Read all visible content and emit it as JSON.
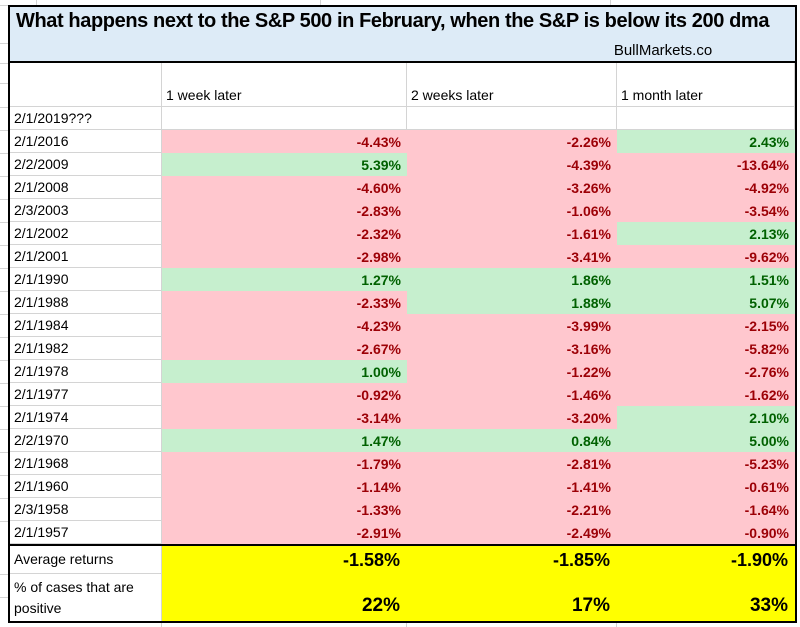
{
  "header": {
    "title": "What happens next to the S&P 500 in February, when the S&P is below its 200 dma",
    "brand": "BullMarkets.co"
  },
  "table": {
    "columns": [
      "1 week later",
      "2 weeks later",
      "1 month later"
    ],
    "pending_row": {
      "date": "2/1/2019???",
      "values": [
        "",
        "",
        ""
      ]
    },
    "rows": [
      {
        "date": "2/1/2016",
        "values": [
          "-4.43%",
          "-2.26%",
          "2.43%"
        ]
      },
      {
        "date": "2/2/2009",
        "values": [
          "5.39%",
          "-4.39%",
          "-13.64%"
        ]
      },
      {
        "date": "2/1/2008",
        "values": [
          "-4.60%",
          "-3.26%",
          "-4.92%"
        ]
      },
      {
        "date": "2/3/2003",
        "values": [
          "-2.83%",
          "-1.06%",
          "-3.54%"
        ]
      },
      {
        "date": "2/1/2002",
        "values": [
          "-2.32%",
          "-1.61%",
          "2.13%"
        ]
      },
      {
        "date": "2/1/2001",
        "values": [
          "-2.98%",
          "-3.41%",
          "-9.62%"
        ]
      },
      {
        "date": "2/1/1990",
        "values": [
          "1.27%",
          "1.86%",
          "1.51%"
        ]
      },
      {
        "date": "2/1/1988",
        "values": [
          "-2.33%",
          "1.88%",
          "5.07%"
        ]
      },
      {
        "date": "2/1/1984",
        "values": [
          "-4.23%",
          "-3.99%",
          "-2.15%"
        ]
      },
      {
        "date": "2/1/1982",
        "values": [
          "-2.67%",
          "-3.16%",
          "-5.82%"
        ]
      },
      {
        "date": "2/1/1978",
        "values": [
          "1.00%",
          "-1.22%",
          "-2.76%"
        ]
      },
      {
        "date": "2/1/1977",
        "values": [
          "-0.92%",
          "-1.46%",
          "-1.62%"
        ]
      },
      {
        "date": "2/1/1974",
        "values": [
          "-3.14%",
          "-3.20%",
          "2.10%"
        ]
      },
      {
        "date": "2/2/1970",
        "values": [
          "1.47%",
          "0.84%",
          "5.00%"
        ]
      },
      {
        "date": "2/1/1968",
        "values": [
          "-1.79%",
          "-2.81%",
          "-5.23%"
        ]
      },
      {
        "date": "2/1/1960",
        "values": [
          "-1.14%",
          "-1.41%",
          "-0.61%"
        ]
      },
      {
        "date": "2/3/1958",
        "values": [
          "-1.33%",
          "-2.21%",
          "-1.64%"
        ]
      },
      {
        "date": "2/1/1957",
        "values": [
          "-2.91%",
          "-2.49%",
          "-0.90%"
        ]
      }
    ],
    "summary": {
      "avg_label": "Average returns",
      "avg_values": [
        "-1.58%",
        "-1.85%",
        "-1.90%"
      ],
      "pct_label": "% of cases that are positive",
      "pct_values": [
        "22%",
        "17%",
        "33%"
      ]
    }
  },
  "colors": {
    "title_bg": "#DDEBF7",
    "negative_fill": "#FFC7CE",
    "negative_text": "#9C0006",
    "positive_fill": "#C6EFCE",
    "positive_text": "#006100",
    "summary_fill": "#FFFF00",
    "gridline": "#D4D4D4"
  }
}
